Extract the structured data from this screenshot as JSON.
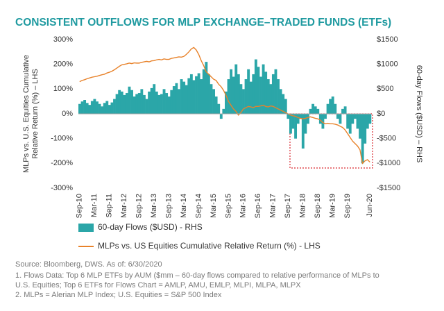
{
  "chart_data": {
    "type": "combo",
    "title": "CONSISTENT OUTFLOWS FOR MLP EXCHANGE–TRADED FUNDS (ETFs)",
    "ylabel": [
      "MLPs vs. U.S. Equities Cumulative",
      "Relative Return (%) – LHS"
    ],
    "y2label": "60-day Flows ($USD) – RHS",
    "categories": [
      "Sep-10",
      null,
      null,
      null,
      null,
      null,
      "Mar-11",
      null,
      null,
      null,
      null,
      null,
      "Sep-11",
      null,
      null,
      null,
      null,
      null,
      "Mar-12",
      null,
      null,
      null,
      null,
      null,
      "Sep-12",
      null,
      null,
      null,
      null,
      null,
      "Mar-13",
      null,
      null,
      null,
      null,
      null,
      "Sep-13",
      null,
      null,
      null,
      null,
      null,
      "Mar-14",
      null,
      null,
      null,
      null,
      null,
      "Sep-14",
      null,
      null,
      null,
      null,
      null,
      "Mar-15",
      null,
      null,
      null,
      null,
      null,
      "Sep-15",
      null,
      null,
      null,
      null,
      null,
      "Mar-16",
      null,
      null,
      null,
      null,
      null,
      "Sep-16",
      null,
      null,
      null,
      null,
      null,
      "Mar-17",
      null,
      null,
      null,
      null,
      null,
      "Sep-17",
      null,
      null,
      null,
      null,
      null,
      "Mar-18",
      null,
      null,
      null,
      null,
      null,
      "Sep-18",
      null,
      null,
      null,
      null,
      null,
      "Mar-19",
      null,
      null,
      null,
      null,
      null,
      "Sep-19",
      null,
      null,
      null,
      null,
      null,
      null,
      null,
      null,
      "Jun-20"
    ],
    "series": [
      {
        "name": "60-day Flows ($USD) - RHS",
        "type": "bar",
        "axis": "y2",
        "color": "#2ba6a8",
        "values": [
          200,
          250,
          280,
          220,
          180,
          260,
          300,
          250,
          200,
          150,
          220,
          260,
          180,
          230,
          300,
          400,
          480,
          450,
          380,
          420,
          550,
          480,
          350,
          400,
          420,
          500,
          380,
          300,
          450,
          520,
          600,
          450,
          380,
          400,
          500,
          420,
          350,
          480,
          560,
          620,
          500,
          700,
          650,
          580,
          720,
          800,
          680,
          760,
          820,
          700,
          900,
          1050,
          800,
          600,
          500,
          350,
          200,
          -100,
          100,
          450,
          700,
          900,
          750,
          1000,
          800,
          600,
          500,
          700,
          900,
          650,
          800,
          1100,
          950,
          750,
          1000,
          850,
          700,
          600,
          800,
          900,
          700,
          500,
          400,
          300,
          -100,
          -400,
          -300,
          -500,
          -200,
          -100,
          -700,
          -400,
          -200,
          100,
          200,
          150,
          100,
          -200,
          -300,
          -100,
          200,
          300,
          350,
          200,
          -100,
          -200,
          100,
          150,
          -300,
          -400,
          -200,
          -100,
          -300,
          -500,
          -1000,
          -600,
          -300,
          -200
        ]
      },
      {
        "name": "MLPs vs. US Equities Cumulative Relative Return (%) - LHS",
        "type": "line",
        "color": "#e8822a",
        "values": [
          130,
          135,
          138,
          142,
          145,
          148,
          150,
          152,
          155,
          158,
          160,
          165,
          168,
          172,
          178,
          185,
          192,
          198,
          200,
          202,
          205,
          203,
          206,
          205,
          205,
          208,
          210,
          212,
          210,
          214,
          215,
          218,
          220,
          218,
          222,
          220,
          220,
          224,
          226,
          228,
          230,
          229,
          232,
          240,
          250,
          262,
          268,
          258,
          240,
          215,
          195,
          170,
          160,
          150,
          140,
          135,
          120,
          110,
          95,
          75,
          50,
          35,
          20,
          10,
          -5,
          5,
          20,
          25,
          30,
          28,
          25,
          30,
          30,
          32,
          35,
          30,
          28,
          32,
          30,
          25,
          20,
          15,
          10,
          5,
          0,
          -5,
          -8,
          -10,
          -15,
          -18,
          -20,
          -18,
          -15,
          -12,
          -15,
          -18,
          -20,
          -25,
          -35,
          -40,
          -38,
          -40,
          -40,
          -42,
          -45,
          -50,
          -55,
          -65,
          -80,
          -95,
          -110,
          -120,
          -130,
          -145,
          -200,
          -190,
          -185,
          -195
        ]
      }
    ],
    "ylim": [
      -300,
      300
    ],
    "yticks": [
      {
        "value": -300,
        "label": "-300%"
      },
      {
        "value": -200,
        "label": "-200%"
      },
      {
        "value": -100,
        "label": "-100%"
      },
      {
        "value": 0,
        "label": "0%"
      },
      {
        "value": 100,
        "label": "100%"
      },
      {
        "value": 200,
        "label": "200%"
      },
      {
        "value": 300,
        "label": "300%"
      }
    ],
    "y2lim": [
      -1500,
      1500
    ],
    "y2ticks": [
      {
        "value": -1500,
        "label": "-$1500"
      },
      {
        "value": -1000,
        "label": "-$1000"
      },
      {
        "value": -500,
        "label": "-$500"
      },
      {
        "value": 0,
        "label": "$0"
      },
      {
        "value": 500,
        "label": "$500"
      },
      {
        "value": 1000,
        "label": "$1000"
      },
      {
        "value": 1500,
        "label": "$1500"
      }
    ],
    "grid": false,
    "footnotes": [
      "Source: Bloomberg, DWS. As of: 6/30/2020",
      "1. Flows Data: Top 6 MLP ETFs by AUM ($mm – 60-day flows compared to relative performance of MLPs to",
      "U.S. Equities; Top 6 ETFs for Flows Chart = AMLP, AMU, EMLP, MLPI, MLPA, MLPX",
      "2. MLPs = Alerian MLP Index; U.S. Equities = S&P 500 Index"
    ]
  }
}
